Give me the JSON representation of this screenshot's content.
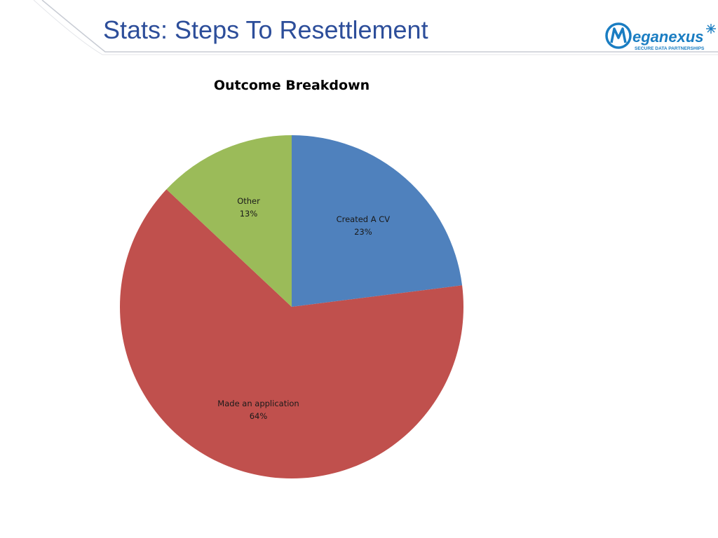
{
  "slide": {
    "title": "Stats: Steps To Resettlement"
  },
  "logo": {
    "name": "Meganexus",
    "tagline": "SECURE DATA PARTNERSHIPS",
    "color": "#1a7dc2"
  },
  "chart_data": {
    "type": "pie",
    "title": "Outcome Breakdown",
    "slices": [
      {
        "label": "Created A CV",
        "value": 23,
        "value_label": "23%",
        "color": "#4f81bd"
      },
      {
        "label": "Made an application",
        "value": 64,
        "value_label": "64%",
        "color": "#c0504d"
      },
      {
        "label": "Other",
        "value": 13,
        "value_label": "13%",
        "color": "#9bbb59"
      }
    ],
    "start_angle": "12 o'clock",
    "direction": "clockwise",
    "legend": "none"
  }
}
